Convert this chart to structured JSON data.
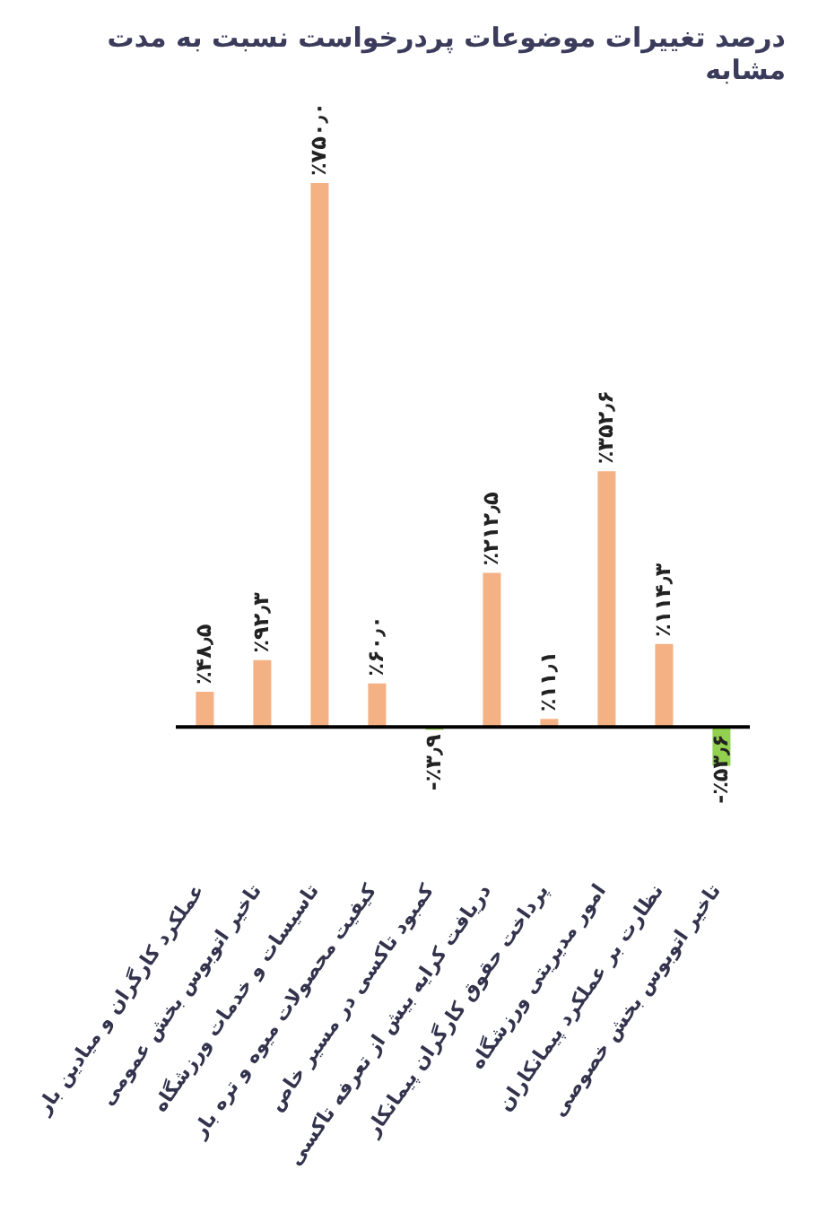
{
  "chart_data": {
    "type": "bar",
    "title": "درصد تغییرات موضوعات پردرخواست نسبت به مدت مشابه",
    "categories": [
      "عملکرد کارگران و میادین بار",
      "تاخیر اتوبوس بخش عمومی",
      "تاسیسات و خدمات ورزشگاه",
      "کیفیت محصولات میوه و تره بار",
      "کمبود تاکسی در مسیر خاص",
      "دریافت کرایه بیش از تعرفه تاکسی",
      "پرداخت حقوق کارگران پیمانکار",
      "امور مدیریتی ورزشگاه",
      "نظارت بر عملکرد پیمانکاران",
      "تاخیر اتوبوس بخش خصوصی"
    ],
    "values": [
      48.5,
      92.3,
      750.0,
      60.0,
      -3.9,
      212.5,
      11.1,
      352.6,
      114.3,
      -53.6
    ],
    "colors": [
      "#f4b183",
      "#f4b183",
      "#f4b183",
      "#f4b183",
      "#92d050",
      "#f4b183",
      "#f4b183",
      "#f4b183",
      "#f4b183",
      "#92d050"
    ],
    "value_labels": [
      "٪۴۸٫۵",
      "٪۹۲٫۳",
      "٪۷۵۰٫۰",
      "٪۶۰٫۰",
      "-٪۳٫۹",
      "٪۲۱۲٫۵",
      "٪۱۱٫۱",
      "٪۳۵۲٫۶",
      "٪۱۱۴٫۳",
      "-٪۵۳٫۶"
    ],
    "grid": false,
    "legend": false
  }
}
